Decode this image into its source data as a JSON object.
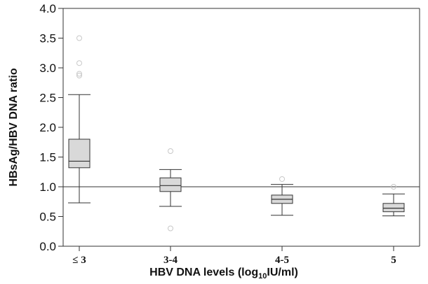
{
  "chart_data": {
    "type": "box",
    "title": "",
    "xlabel": "HBV DNA levels (log10IU/ml)",
    "xlabel_parts": {
      "prefix": "HBV DNA levels (log",
      "subscript": "10",
      "suffix": "IU/ml)"
    },
    "ylabel": "HBsAg/HBV DNA ratio",
    "categories": [
      "≤ 3",
      "3-4",
      "4-5",
      "5"
    ],
    "ylim": [
      0,
      4.0
    ],
    "yticks": [
      "0.0",
      "0.5",
      "1.0",
      "1.5",
      "2.0",
      "2.5",
      "3.0",
      "3.5",
      "4.0"
    ],
    "reference_line": 1.0,
    "grid": false,
    "colors": {
      "box_fill": "#d9d9d9",
      "stroke": "#333333",
      "outlier": "#c8c8c8"
    },
    "boxes": [
      {
        "category": "≤ 3",
        "whisker_low": 0.73,
        "q1": 1.32,
        "median": 1.43,
        "q3": 1.8,
        "whisker_high": 2.55,
        "outliers": [
          2.87,
          2.9,
          3.08,
          3.5
        ]
      },
      {
        "category": "3-4",
        "whisker_low": 0.67,
        "q1": 0.92,
        "median": 1.02,
        "q3": 1.15,
        "whisker_high": 1.29,
        "outliers": [
          0.3,
          1.6
        ]
      },
      {
        "category": "4-5",
        "whisker_low": 0.52,
        "q1": 0.72,
        "median": 0.79,
        "q3": 0.86,
        "whisker_high": 1.04,
        "outliers": [
          1.13
        ]
      },
      {
        "category": "5",
        "whisker_low": 0.51,
        "q1": 0.58,
        "median": 0.64,
        "q3": 0.72,
        "whisker_high": 0.88,
        "outliers": [
          1.0
        ]
      }
    ]
  }
}
